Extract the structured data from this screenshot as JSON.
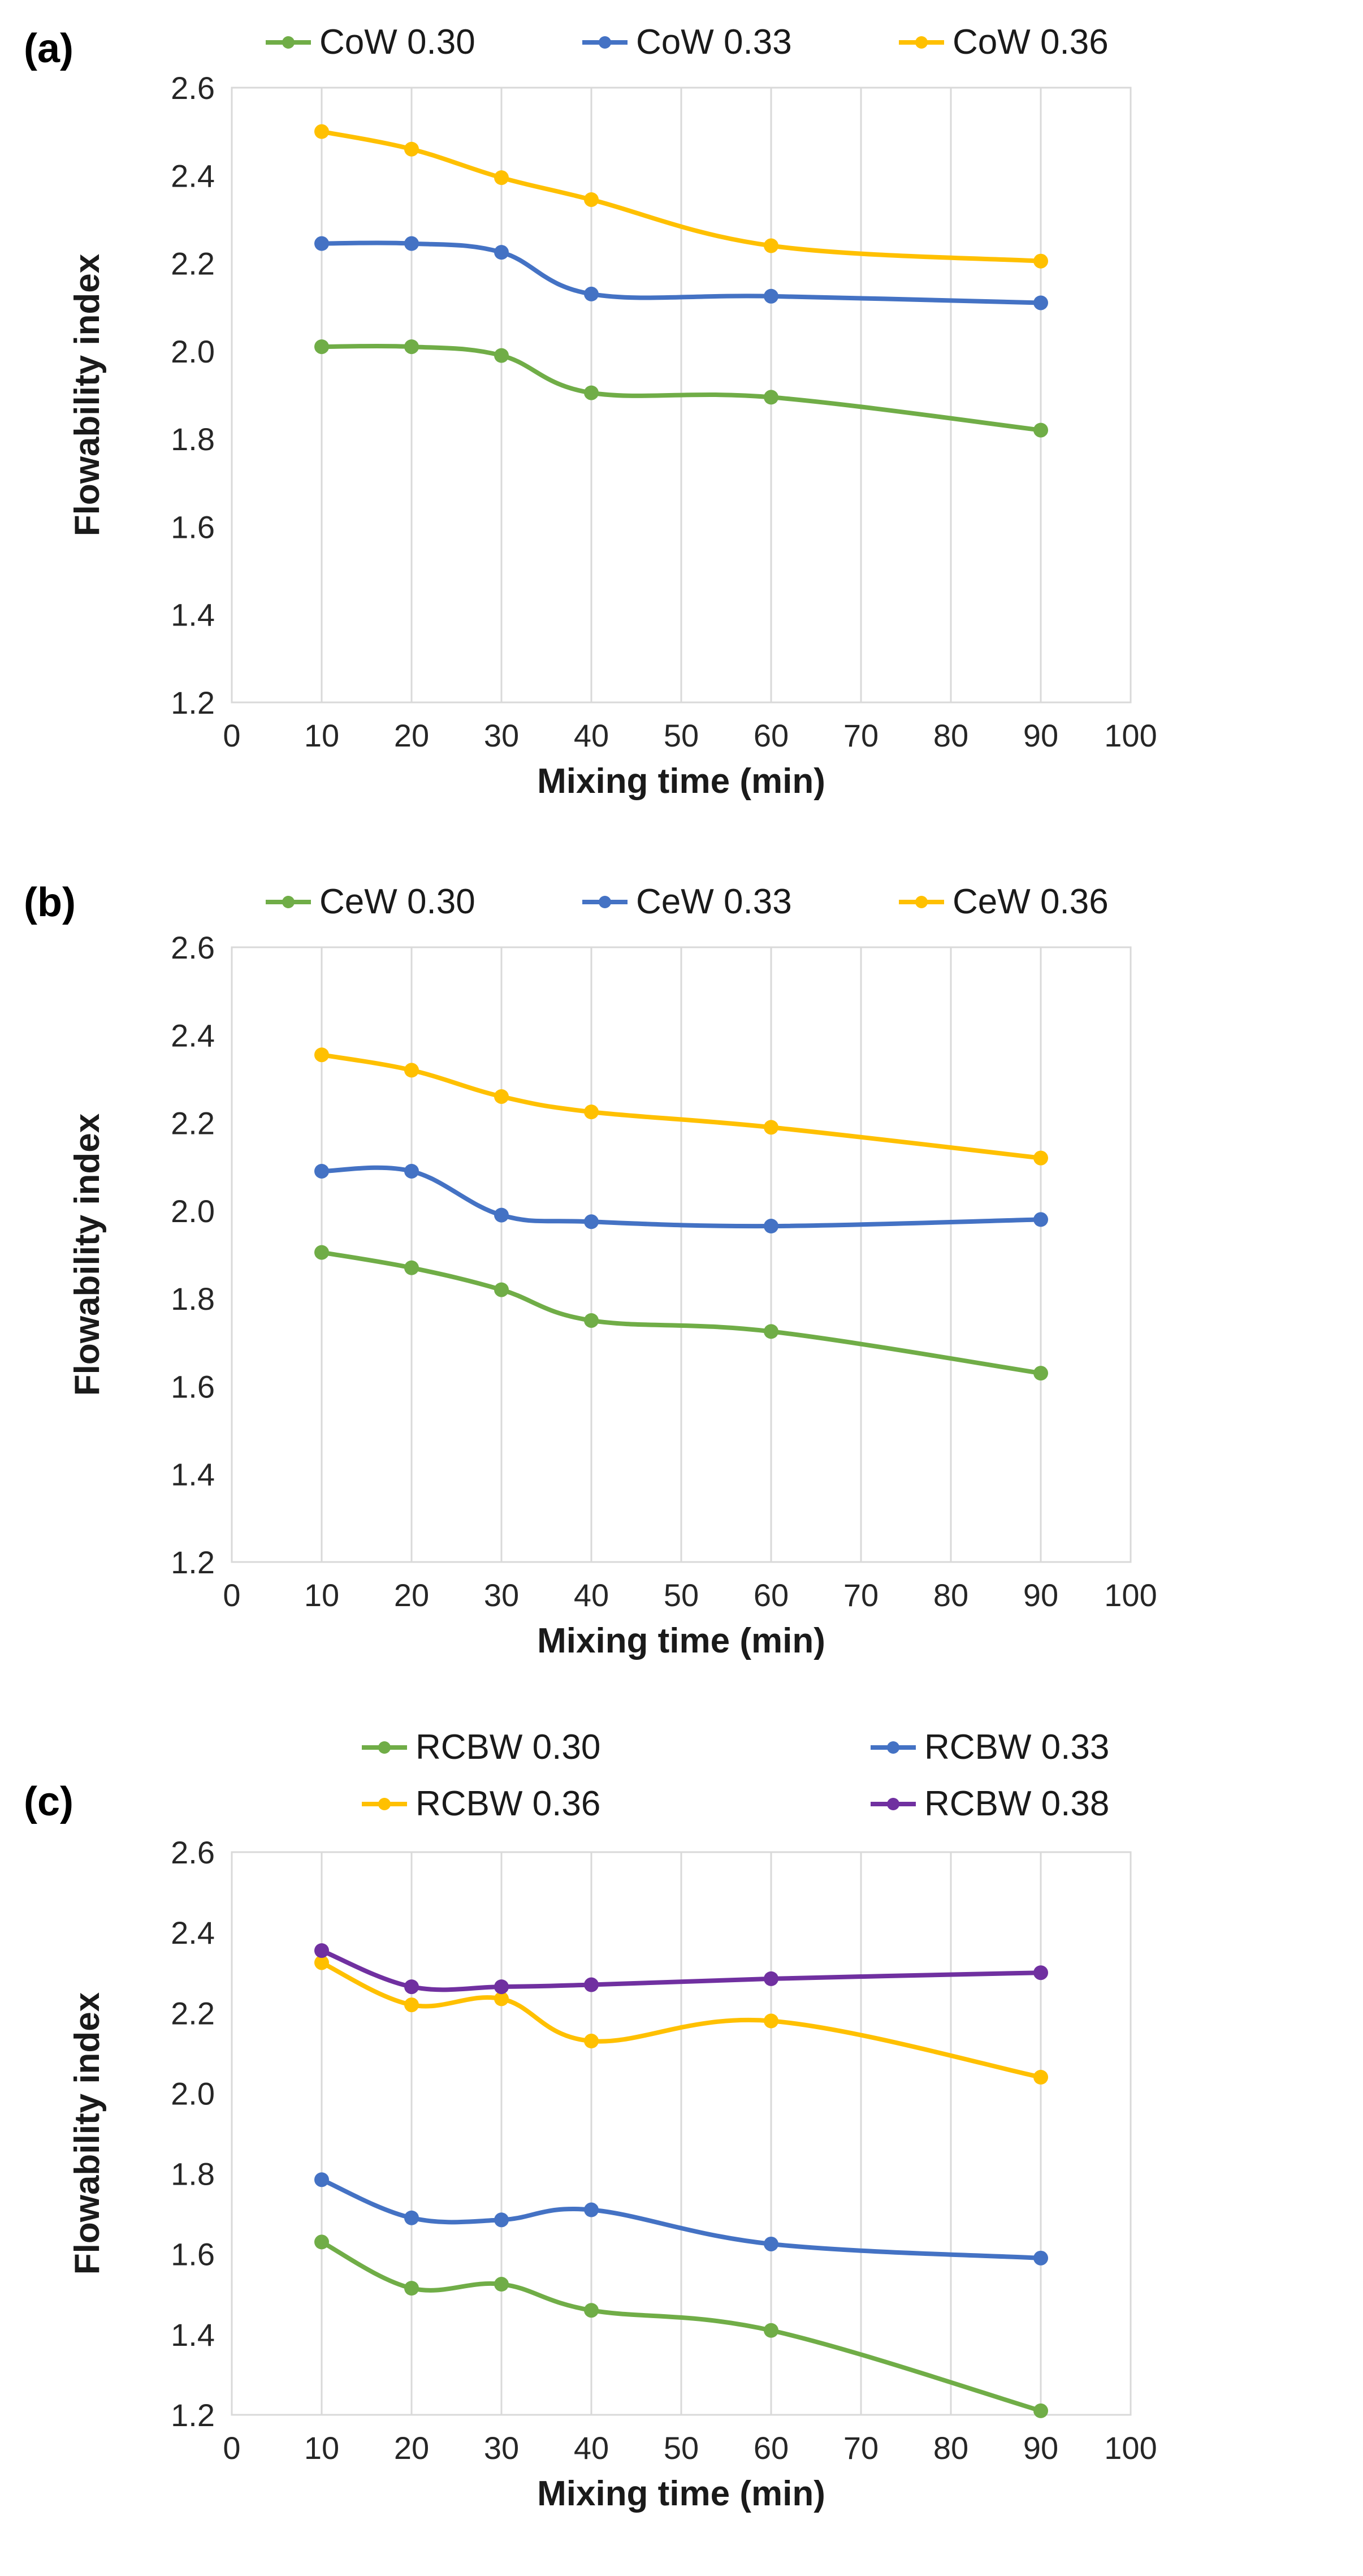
{
  "chart_data": [
    {
      "type": "line",
      "panel_label": "(a)",
      "xlabel": "Mixing time (min)",
      "ylabel": "Flowability index",
      "xlim": [
        0,
        100
      ],
      "ylim": [
        1.2,
        2.6
      ],
      "xticks": [
        "0",
        "10",
        "20",
        "30",
        "40",
        "50",
        "60",
        "70",
        "80",
        "90",
        "100"
      ],
      "yticks": [
        "1.2",
        "1.4",
        "1.6",
        "1.8",
        "2.0",
        "2.2",
        "2.4",
        "2.6"
      ],
      "grid": "vertical",
      "legend_position": "top",
      "x": [
        10,
        20,
        30,
        40,
        60,
        90
      ],
      "series": [
        {
          "name": "CoW 0.30",
          "color": "#70ad47",
          "values": [
            2.01,
            2.01,
            1.99,
            1.905,
            1.895,
            1.82
          ]
        },
        {
          "name": "CoW 0.33",
          "color": "#4472c4",
          "values": [
            2.245,
            2.245,
            2.225,
            2.13,
            2.125,
            2.11
          ]
        },
        {
          "name": "CoW 0.36",
          "color": "#ffc000",
          "values": [
            2.5,
            2.46,
            2.395,
            2.345,
            2.24,
            2.205
          ]
        }
      ]
    },
    {
      "type": "line",
      "panel_label": "(b)",
      "xlabel": "Mixing time (min)",
      "ylabel": "Flowability index",
      "xlim": [
        0,
        100
      ],
      "ylim": [
        1.2,
        2.6
      ],
      "xticks": [
        "0",
        "10",
        "20",
        "30",
        "40",
        "50",
        "60",
        "70",
        "80",
        "90",
        "100"
      ],
      "yticks": [
        "1.2",
        "1.4",
        "1.6",
        "1.8",
        "2.0",
        "2.2",
        "2.4",
        "2.6"
      ],
      "grid": "vertical",
      "legend_position": "top",
      "x": [
        10,
        20,
        30,
        40,
        60,
        90
      ],
      "series": [
        {
          "name": "CeW 0.30",
          "color": "#70ad47",
          "values": [
            1.905,
            1.87,
            1.82,
            1.75,
            1.725,
            1.63
          ]
        },
        {
          "name": "CeW 0.33",
          "color": "#4472c4",
          "values": [
            2.09,
            2.09,
            1.99,
            1.975,
            1.965,
            1.98
          ]
        },
        {
          "name": "CeW 0.36",
          "color": "#ffc000",
          "values": [
            2.355,
            2.32,
            2.26,
            2.225,
            2.19,
            2.12
          ]
        }
      ]
    },
    {
      "type": "line",
      "panel_label": "(c)",
      "xlabel": "Mixing time (min)",
      "ylabel": "Flowability index",
      "xlim": [
        0,
        100
      ],
      "ylim": [
        1.2,
        2.6
      ],
      "xticks": [
        "0",
        "10",
        "20",
        "30",
        "40",
        "50",
        "60",
        "70",
        "80",
        "90",
        "100"
      ],
      "yticks": [
        "1.2",
        "1.4",
        "1.6",
        "1.8",
        "2.0",
        "2.2",
        "2.4",
        "2.6"
      ],
      "grid": "vertical",
      "legend_position": "top",
      "x": [
        10,
        20,
        30,
        40,
        60,
        90
      ],
      "series": [
        {
          "name": "RCBW 0.30",
          "color": "#70ad47",
          "values": [
            1.63,
            1.515,
            1.525,
            1.46,
            1.41,
            1.21
          ]
        },
        {
          "name": "RCBW 0.33",
          "color": "#4472c4",
          "values": [
            1.785,
            1.69,
            1.685,
            1.71,
            1.625,
            1.59
          ]
        },
        {
          "name": "RCBW 0.36",
          "color": "#ffc000",
          "values": [
            2.325,
            2.22,
            2.235,
            2.13,
            2.18,
            2.04
          ]
        },
        {
          "name": "RCBW 0.38",
          "color": "#7030a0",
          "values": [
            2.355,
            2.265,
            2.265,
            2.27,
            2.285,
            2.3
          ]
        }
      ]
    }
  ]
}
